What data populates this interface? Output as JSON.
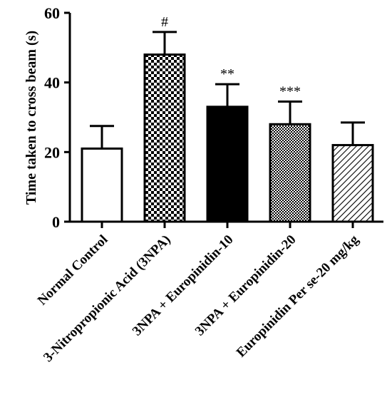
{
  "chart_data": {
    "type": "bar",
    "title": "",
    "ylabel": "Time taken to cross beam (s)",
    "xlabel": "",
    "ylim": [
      0,
      60
    ],
    "yticks": [
      "0",
      "20",
      "40",
      "60"
    ],
    "grid": false,
    "categories": [
      "Normal Control",
      "3-Nitropropionic Acid (3NPA)",
      "3NPA + Europinidin-10",
      "3NPA + Europinidin-20",
      "Europinidin Per se-20 mg/kg"
    ],
    "values": [
      21,
      48,
      33,
      28,
      22
    ],
    "errors": [
      6.5,
      6.5,
      6.5,
      6.5,
      6.5
    ],
    "annotations": [
      "",
      "#",
      "**",
      "***",
      ""
    ],
    "fills": [
      "white",
      "checker-large",
      "solid-black",
      "checker-small",
      "diagonal-hatch"
    ],
    "colors": {
      "bar_stroke": "#000000",
      "fill": "#000000",
      "background": "#ffffff"
    }
  }
}
